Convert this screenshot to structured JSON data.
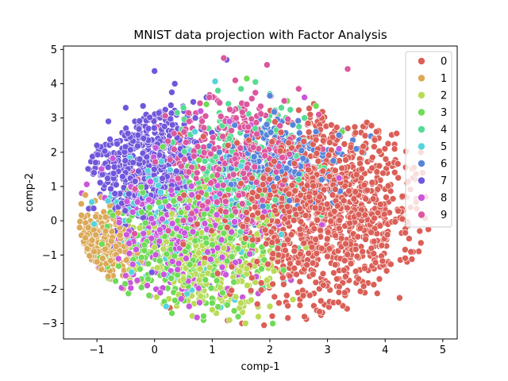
{
  "chart_data": {
    "type": "scatter",
    "title": "MNIST data projection with Factor Analysis",
    "xlabel": "comp-1",
    "ylabel": "comp-2",
    "xlim": [
      -1.58,
      5.25
    ],
    "ylim": [
      -3.45,
      5.1
    ],
    "xticks": [
      -1,
      0,
      1,
      2,
      3,
      4,
      5
    ],
    "xtick_labels": [
      "−1",
      "0",
      "1",
      "2",
      "3",
      "4",
      "5"
    ],
    "yticks": [
      -3,
      -2,
      -1,
      0,
      1,
      2,
      3,
      4,
      5
    ],
    "ytick_labels": [
      "−3",
      "−2",
      "−1",
      "0",
      "1",
      "2",
      "3",
      "4",
      "5"
    ],
    "grid": false,
    "legend_position": "upper right",
    "series": [
      {
        "name": "0",
        "color": "#db5f57",
        "center": [
          3.0,
          0.3
        ],
        "spread": [
          0.85,
          1.35
        ],
        "points": [
          [
            4.62,
            2.0
          ],
          [
            4.5,
            1.55
          ],
          [
            4.7,
            0.7
          ],
          [
            4.35,
            -0.35
          ],
          [
            4.25,
            -2.25
          ],
          [
            4.2,
            2.55
          ],
          [
            4.05,
            2.25
          ],
          [
            4.75,
            -0.25
          ],
          [
            4.55,
            0.35
          ],
          [
            3.9,
            -1.7
          ],
          [
            2.6,
            -2.8
          ],
          [
            1.9,
            -3.05
          ],
          [
            3.3,
            -2.1
          ],
          [
            4.4,
            1.15
          ],
          [
            3.85,
            2.6
          ],
          [
            3.6,
            2.0
          ],
          [
            4.65,
            1.4
          ],
          [
            4.6,
            -0.3
          ],
          [
            2.9,
            3.0
          ],
          [
            2.7,
            3.1
          ]
        ]
      },
      {
        "name": "1",
        "color": "#dba957",
        "center": [
          -0.95,
          -0.75
        ],
        "spread": [
          0.28,
          0.5
        ],
        "points": [
          [
            -1.3,
            -0.2
          ],
          [
            -1.2,
            -0.5
          ],
          [
            -1.05,
            -0.9
          ],
          [
            -0.9,
            -1.1
          ],
          [
            -0.75,
            -0.6
          ],
          [
            -1.15,
            -0.2
          ],
          [
            -1.0,
            -1.2
          ],
          [
            -0.85,
            -0.3
          ]
        ]
      },
      {
        "name": "2",
        "color": "#b9db57",
        "center": [
          0.95,
          -1.05
        ],
        "spread": [
          0.55,
          0.75
        ],
        "points": [
          [
            1.3,
            -2.9
          ],
          [
            1.0,
            -2.6
          ],
          [
            0.5,
            -1.7
          ],
          [
            1.6,
            -1.4
          ],
          [
            2.0,
            -2.5
          ],
          [
            0.8,
            -2.2
          ],
          [
            1.8,
            -2.8
          ],
          [
            2.4,
            -2.3
          ],
          [
            1.2,
            -0.8
          ],
          [
            0.3,
            0.2
          ]
        ]
      },
      {
        "name": "3",
        "color": "#6fdb57",
        "center": [
          0.55,
          -0.6
        ],
        "spread": [
          0.65,
          1.0
        ],
        "points": [
          [
            0.3,
            -2.7
          ],
          [
            0.6,
            -2.5
          ],
          [
            1.0,
            -2.4
          ],
          [
            2.05,
            -3.0
          ],
          [
            1.45,
            -2.8
          ],
          [
            2.3,
            3.5
          ],
          [
            1.6,
            4.15
          ],
          [
            0.9,
            3.4
          ],
          [
            2.8,
            3.35
          ],
          [
            3.25,
            2.6
          ]
        ]
      },
      {
        "name": "4",
        "color": "#57db94",
        "center": [
          1.5,
          1.3
        ],
        "spread": [
          0.55,
          1.0
        ],
        "points": [
          [
            1.75,
            4.05
          ],
          [
            1.5,
            3.85
          ],
          [
            2.0,
            3.7
          ],
          [
            2.6,
            3.0
          ],
          [
            2.2,
            3.3
          ],
          [
            1.1,
            3.8
          ],
          [
            0.5,
            3.3
          ],
          [
            2.5,
            1.2
          ],
          [
            1.3,
            2.4
          ]
        ]
      },
      {
        "name": "5",
        "color": "#57d3db",
        "center": [
          0.55,
          0.2
        ],
        "spread": [
          0.65,
          0.95
        ],
        "points": [
          [
            1.05,
            4.07
          ],
          [
            0.2,
            -2.5
          ],
          [
            1.5,
            1.6
          ],
          [
            0.7,
            2.6
          ],
          [
            2.2,
            -0.4
          ],
          [
            -0.4,
            -1.5
          ]
        ]
      },
      {
        "name": "6",
        "color": "#5784db",
        "center": [
          2.1,
          1.6
        ],
        "spread": [
          0.55,
          0.65
        ],
        "points": [
          [
            2.0,
            3.65
          ],
          [
            2.55,
            2.05
          ],
          [
            2.8,
            2.6
          ],
          [
            3.2,
            2.5
          ],
          [
            3.5,
            2.1
          ],
          [
            2.9,
            1.2
          ],
          [
            2.4,
            2.8
          ],
          [
            3.1,
            1.75
          ]
        ]
      },
      {
        "name": "7",
        "color": "#7157db",
        "center": [
          -0.15,
          1.75
        ],
        "spread": [
          0.5,
          0.95
        ],
        "points": [
          [
            0.0,
            4.37
          ],
          [
            0.3,
            3.75
          ],
          [
            -0.5,
            3.3
          ],
          [
            -0.8,
            2.9
          ],
          [
            -1.0,
            2.2
          ],
          [
            -0.2,
            3.35
          ],
          [
            1.25,
            4.7
          ],
          [
            0.9,
            3.6
          ],
          [
            -1.05,
            1.4
          ],
          [
            0.35,
            4.0
          ]
        ]
      },
      {
        "name": "8",
        "color": "#c957db",
        "center": [
          0.45,
          -0.45
        ],
        "spread": [
          0.75,
          0.95
        ],
        "points": [
          [
            0.6,
            -2.5
          ],
          [
            0.1,
            -2.1
          ],
          [
            1.3,
            2.9
          ],
          [
            0.8,
            3.2
          ],
          [
            3.2,
            1.25
          ],
          [
            3.2,
            2.1
          ],
          [
            2.6,
            3.6
          ],
          [
            -0.5,
            -1.6
          ]
        ]
      },
      {
        "name": "9",
        "color": "#db579e",
        "center": [
          1.35,
          1.6
        ],
        "spread": [
          0.65,
          1.0
        ],
        "points": [
          [
            1.2,
            4.75
          ],
          [
            3.35,
            4.43
          ],
          [
            1.95,
            4.55
          ],
          [
            2.5,
            3.85
          ],
          [
            1.4,
            4.1
          ],
          [
            2.25,
            3.5
          ],
          [
            0.95,
            3.6
          ],
          [
            1.6,
            3.4
          ],
          [
            2.85,
            3.1
          ],
          [
            0.6,
            2.9
          ]
        ]
      }
    ]
  }
}
